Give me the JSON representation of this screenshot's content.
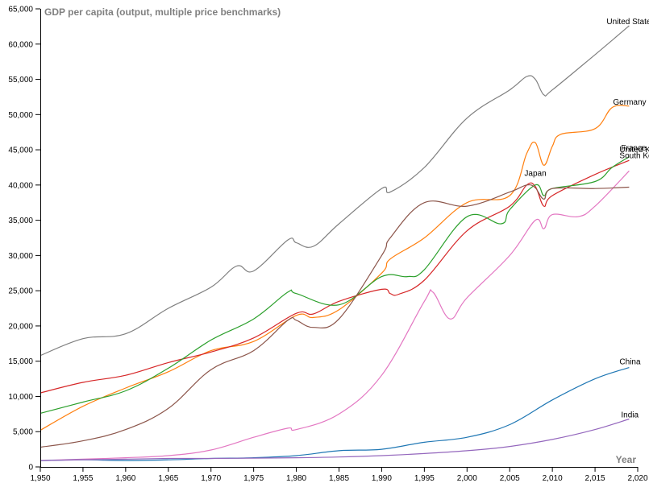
{
  "chart_data": {
    "type": "line",
    "title": "GDP per capita (output, multiple price benchmarks)",
    "xlabel": "Year",
    "ylabel": "",
    "xlim": [
      1950,
      2020
    ],
    "ylim": [
      0,
      65000
    ],
    "x_ticks": [
      1950,
      1955,
      1960,
      1965,
      1970,
      1975,
      1980,
      1985,
      1990,
      1995,
      2000,
      2005,
      2010,
      2015,
      2020
    ],
    "y_ticks": [
      0,
      5000,
      10000,
      15000,
      20000,
      25000,
      30000,
      35000,
      40000,
      45000,
      50000,
      55000,
      60000,
      65000
    ],
    "grid": false,
    "legend": "end-of-line labels",
    "series": [
      {
        "name": "United States",
        "color": "#7f7f7f",
        "x": [
          1950,
          1955,
          1960,
          1965,
          1970,
          1973,
          1975,
          1979,
          1980,
          1982,
          1985,
          1990,
          1991,
          1995,
          2000,
          2005,
          2007,
          2008,
          2009,
          2010,
          2015,
          2019
        ],
        "y": [
          15800,
          18200,
          18900,
          22500,
          25500,
          28500,
          27800,
          32200,
          31800,
          31300,
          34500,
          39500,
          39000,
          42500,
          49500,
          53500,
          55400,
          55000,
          52800,
          53500,
          58500,
          62600
        ]
      },
      {
        "name": "Germany",
        "color": "#ff7f0e",
        "x": [
          1950,
          1955,
          1960,
          1965,
          1970,
          1975,
          1980,
          1982,
          1985,
          1990,
          1991,
          1995,
          2000,
          2005,
          2007,
          2008,
          2009,
          2010,
          2011,
          2015,
          2017,
          2019
        ],
        "y": [
          5200,
          8600,
          11200,
          13500,
          16500,
          17800,
          21500,
          21200,
          22300,
          27500,
          29500,
          32500,
          37500,
          38500,
          44500,
          46000,
          42800,
          45500,
          47200,
          48000,
          51000,
          51200
        ]
      },
      {
        "name": "United Kingdom",
        "color": "#d62728",
        "x": [
          1950,
          1955,
          1960,
          1965,
          1970,
          1975,
          1980,
          1982,
          1985,
          1990,
          1991,
          1992,
          1995,
          2000,
          2005,
          2007,
          2008,
          2009,
          2010,
          2015,
          2019
        ],
        "y": [
          10500,
          12000,
          13000,
          14800,
          16300,
          18300,
          21800,
          21700,
          23500,
          25200,
          24600,
          24500,
          26500,
          33500,
          37000,
          40000,
          39800,
          37000,
          38500,
          41500,
          43500
        ]
      },
      {
        "name": "France",
        "color": "#2ca02c",
        "x": [
          1950,
          1955,
          1960,
          1965,
          1970,
          1975,
          1979,
          1980,
          1985,
          1990,
          1993,
          1995,
          2000,
          2004,
          2005,
          2008,
          2009,
          2010,
          2015,
          2017,
          2019
        ],
        "y": [
          7600,
          9200,
          10800,
          14000,
          18000,
          21000,
          24800,
          24600,
          23000,
          27000,
          27000,
          28000,
          35500,
          34500,
          36500,
          40000,
          38500,
          39500,
          40500,
          42500,
          44000
        ]
      },
      {
        "name": "South Korea",
        "color": "#e377c2",
        "x": [
          1950,
          1955,
          1960,
          1965,
          1970,
          1975,
          1979,
          1980,
          1985,
          1990,
          1995,
          1996,
          1998,
          2000,
          2005,
          2008,
          2009,
          2010,
          2013,
          2015,
          2019
        ],
        "y": [
          900,
          1100,
          1300,
          1600,
          2400,
          4200,
          5500,
          5300,
          7500,
          13000,
          23500,
          24800,
          21000,
          24000,
          30000,
          35000,
          33800,
          35800,
          35500,
          37000,
          42000
        ]
      },
      {
        "name": "Japan",
        "color": "#8c564b",
        "x": [
          1950,
          1955,
          1960,
          1965,
          1970,
          1975,
          1979,
          1980,
          1982,
          1985,
          1990,
          1991,
          1995,
          2000,
          2005,
          2007,
          2008,
          2009,
          2010,
          2015,
          2019
        ],
        "y": [
          2800,
          3700,
          5300,
          8300,
          13800,
          16500,
          20800,
          20800,
          19800,
          21000,
          30000,
          32500,
          37500,
          37000,
          39000,
          40000,
          39600,
          38000,
          39500,
          39500,
          39700
        ]
      },
      {
        "name": "China",
        "color": "#1f77b4",
        "x": [
          1950,
          1955,
          1960,
          1965,
          1970,
          1975,
          1980,
          1985,
          1990,
          1995,
          2000,
          2005,
          2010,
          2015,
          2019
        ],
        "y": [
          900,
          1000,
          900,
          1000,
          1200,
          1300,
          1600,
          2300,
          2500,
          3500,
          4200,
          6000,
          9500,
          12500,
          14100
        ]
      },
      {
        "name": "India",
        "color": "#9467bd",
        "x": [
          1950,
          1955,
          1960,
          1965,
          1970,
          1975,
          1980,
          1985,
          1990,
          1995,
          2000,
          2005,
          2010,
          2015,
          2019
        ],
        "y": [
          900,
          1000,
          1100,
          1200,
          1200,
          1250,
          1300,
          1400,
          1600,
          1900,
          2300,
          2900,
          3900,
          5300,
          6800
        ]
      }
    ]
  }
}
